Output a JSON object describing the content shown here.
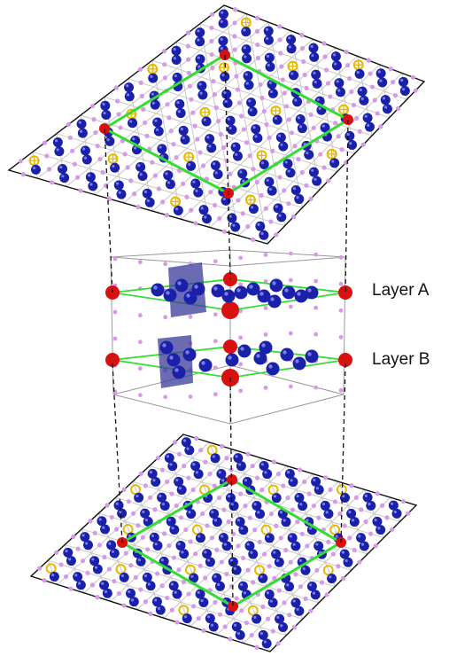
{
  "labels": {
    "layer_a": "Layer A",
    "layer_b": "Layer B"
  },
  "colors": {
    "background": "#ffffff",
    "lattice_line": "#c8c8c8",
    "sheet_border": "#111111",
    "small_atom": "#d899e6",
    "blue_atom": "#1a20a8",
    "red_atom": "#d81010",
    "yellow_ring": "#e8b800",
    "green_cell": "#33dd33",
    "polyhedron": "#3a3a9a",
    "dashed_connector": "#111111"
  },
  "icons": {
    "small_atom": "small-lattice-atom-icon",
    "blue_atom": "blue-atom-icon",
    "red_atom": "red-corner-atom-icon",
    "yellow_crossed_ring": "yellow-crossed-ring-icon",
    "yellow_ring": "yellow-ring-icon"
  }
}
